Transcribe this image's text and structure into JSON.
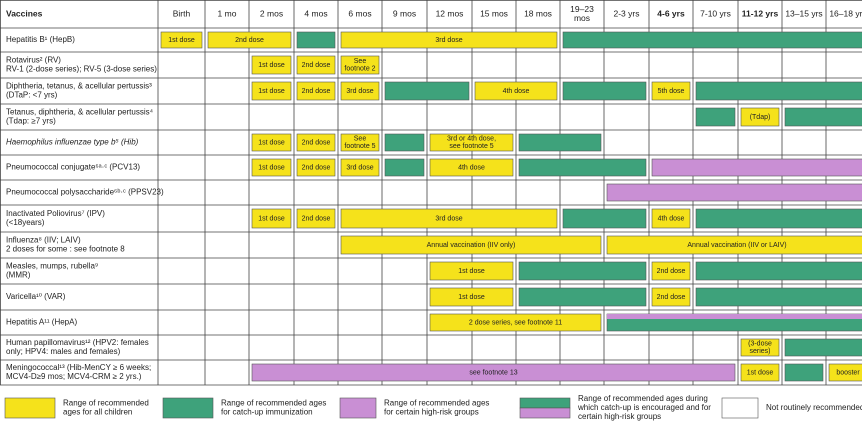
{
  "header": {
    "vaccines": "Vaccines",
    "ages": [
      "Birth",
      "1 mo",
      "2 mos",
      "4 mos",
      "6 mos",
      "9 mos",
      "12 mos",
      "15 mos",
      "18 mos",
      [
        "19–23",
        "mos"
      ],
      "2-3 yrs",
      "4-6 yrs",
      "7-10 yrs",
      "11-12 yrs",
      "13–15 yrs",
      "16–18 yrs"
    ]
  },
  "rows": [
    {
      "vaccine": [
        "Hepatitis B¹ (HepB)"
      ],
      "labels": [
        [
          "1st dose"
        ],
        [
          "2nd dose"
        ],
        [
          "3rd dose"
        ]
      ]
    },
    {
      "vaccine": [
        "Rotavirus² (RV)",
        "RV-1 (2-dose series); RV-5 (3-dose series)"
      ],
      "labels": [
        [
          "1st dose"
        ],
        [
          "2nd dose"
        ],
        [
          "See",
          "footnote 2"
        ]
      ]
    },
    {
      "vaccine": [
        "Diphtheria, tetanus, & acellular pertussis³",
        "(DTaP: <7 yrs)"
      ],
      "labels": [
        [
          "1st dose"
        ],
        [
          "2nd dose"
        ],
        [
          "3rd dose"
        ],
        [
          "4th dose"
        ],
        [
          "5th dose"
        ]
      ]
    },
    {
      "vaccine": [
        "Tetanus, diphtheria, & acellular pertussis⁴",
        "(Tdap: ≥7 yrs)"
      ],
      "labels": [
        [
          "(Tdap)"
        ]
      ]
    },
    {
      "vaccine": [
        "Haemophilus influenzae type b⁵ (Hib)"
      ],
      "labels": [
        [
          "1st dose"
        ],
        [
          "2nd dose"
        ],
        [
          "See",
          "footnote 5"
        ],
        [
          "3rd or 4th dose,",
          "see footnote 5"
        ]
      ]
    },
    {
      "vaccine": [
        "Pneumococcal conjugate⁶ᵃ·ᶜ (PCV13)"
      ],
      "labels": [
        [
          "1st dose"
        ],
        [
          "2nd dose"
        ],
        [
          "3rd dose"
        ],
        [
          "4th dose"
        ]
      ]
    },
    {
      "vaccine": [
        "Pneumococcal polysaccharide⁶ᵇ·ᶜ (PPSV23)"
      ],
      "labels": []
    },
    {
      "vaccine": [
        "Inactivated Poliovirus⁷ (IPV)",
        "(<18years)"
      ],
      "labels": [
        [
          "1st dose"
        ],
        [
          "2nd dose"
        ],
        [
          "3rd dose"
        ],
        [
          "4th dose"
        ]
      ]
    },
    {
      "vaccine": [
        "Influenza⁸ (IIV; LAIV)",
        "2 doses for some : see footnote 8"
      ],
      "labels": [
        [
          "Annual vaccination (IIV only)"
        ],
        [
          "Annual vaccination (IIV or LAIV)"
        ]
      ]
    },
    {
      "vaccine": [
        "Measles, mumps, rubella⁹",
        "(MMR)"
      ],
      "labels": [
        [
          "1st dose"
        ],
        [
          "2nd dose"
        ]
      ]
    },
    {
      "vaccine": [
        "Varicella¹⁰ (VAR)"
      ],
      "labels": [
        [
          "1st dose"
        ],
        [
          "2nd dose"
        ]
      ]
    },
    {
      "vaccine": [
        "Hepatitis A¹¹ (HepA)"
      ],
      "labels": [
        [
          "2 dose series, see footnote 11"
        ]
      ]
    },
    {
      "vaccine": [
        "Human papillomavirus¹² (HPV2: females",
        "only; HPV4: males and females)"
      ],
      "labels": [
        [
          "(3-dose",
          "series)"
        ]
      ]
    },
    {
      "vaccine": [
        "Meningococcal¹³ (Hib-MenCY ≥ 6 weeks;",
        "MCV4-D≥9 mos; MCV4-CRM ≥ 2 yrs.)"
      ],
      "labels": [
        [
          "see footnote 13"
        ],
        [
          "1st dose"
        ],
        [
          "booster"
        ]
      ]
    }
  ],
  "legend": [
    [
      "Range of recommended",
      "ages for all children"
    ],
    [
      "Range of recommended ages",
      "for catch-up immunization"
    ],
    [
      "Range of recommended ages",
      "for certain high-risk groups"
    ],
    [
      "Range of recommended ages during",
      "which catch-up is encouraged and for",
      "certain high-risk groups"
    ],
    [
      "Not routinely recommended"
    ]
  ]
}
